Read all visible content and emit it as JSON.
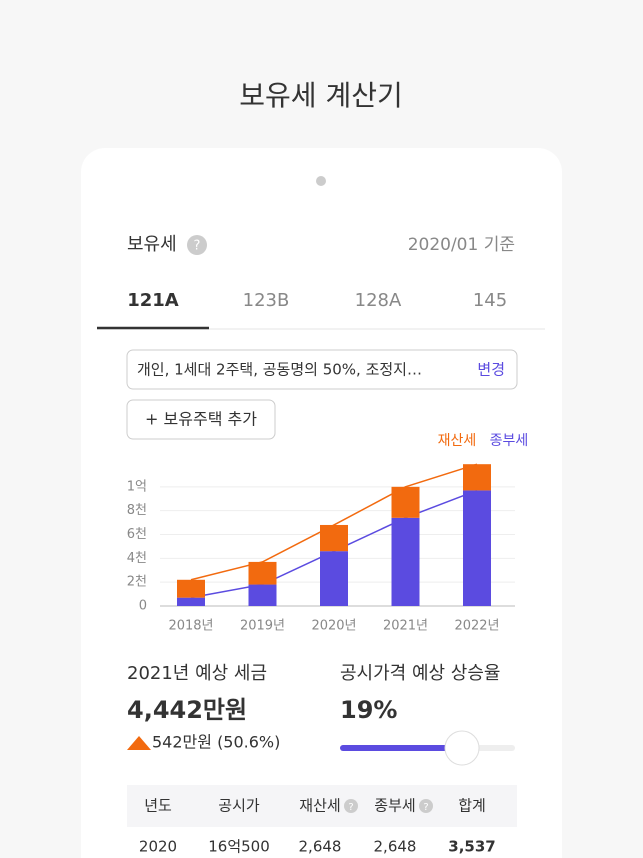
{
  "header": {
    "title": "보유세 계산기"
  },
  "card": {
    "label": "보유세",
    "help_icon": "?",
    "basis": "2020/01 기준",
    "tabs": [
      "121A",
      "123B",
      "128A",
      "145"
    ],
    "condition": "개인, 1세대 2주택, 공동명의 50%, 조정지…",
    "change": "변경",
    "add_button": "+ 보유주택 추가",
    "estimate": {
      "title": "2021년 예상 세금",
      "amount": "4,442만원",
      "change": "542만원 (50.6%)"
    },
    "rate": {
      "title": "공시가격 예상 상승율",
      "value": "19%"
    },
    "table": {
      "headers": [
        "년도",
        "공시가",
        "재산세",
        "종부세",
        "합계"
      ],
      "rows": [
        [
          "2020",
          "16억500",
          "2,648",
          "2,648",
          "3,537"
        ]
      ]
    }
  },
  "chart_data": {
    "type": "stacked-bar-line",
    "categories": [
      "2018년",
      "2019년",
      "2020년",
      "2021년",
      "2022년"
    ],
    "series": [
      {
        "name": "종부세",
        "color": "#5b4be0",
        "values": [
          700,
          1800,
          4600,
          7400,
          9700
        ]
      },
      {
        "name": "재산세",
        "color": "#f26a0f",
        "values": [
          1500,
          1900,
          2200,
          2600,
          2200
        ]
      }
    ],
    "ylim": [
      0,
      12000
    ],
    "yticks": [
      0,
      {
        "value": 2000,
        "label": "2천"
      },
      {
        "value": 4000,
        "label": "4천"
      },
      {
        "value": 6000,
        "label": "6천"
      },
      {
        "value": 8000,
        "label": "8천"
      },
      {
        "value": 10000,
        "label": "1억"
      }
    ],
    "grid": true
  }
}
